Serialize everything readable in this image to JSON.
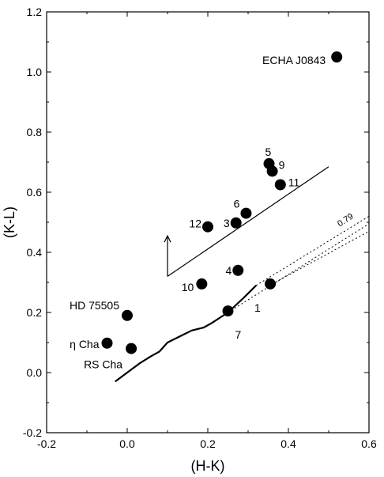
{
  "chart_data": {
    "type": "scatter",
    "title": "",
    "xlabel": "(H-K)",
    "ylabel": "(K-L)",
    "xlim": [
      -0.2,
      0.6
    ],
    "ylim": [
      -0.2,
      1.2
    ],
    "x_ticks": [
      -0.2,
      0.0,
      0.2,
      0.4,
      0.6
    ],
    "x_tick_labels": [
      "-0.2",
      "0.0",
      "0.2",
      "0.4",
      "0.6"
    ],
    "y_ticks": [
      -0.2,
      0.0,
      0.2,
      0.4,
      0.6,
      0.8,
      1.0,
      1.2
    ],
    "y_tick_labels": [
      "-0.2",
      "0.0",
      "0.2",
      "0.4",
      "0.6",
      "0.8",
      "1.0",
      "1.2"
    ],
    "grid": false,
    "legend": "none",
    "points": [
      {
        "label": "1",
        "x": 0.355,
        "y": 0.295
      },
      {
        "label": "3",
        "x": 0.27,
        "y": 0.498
      },
      {
        "label": "4",
        "x": 0.275,
        "y": 0.34
      },
      {
        "label": "5",
        "x": 0.352,
        "y": 0.695
      },
      {
        "label": "6",
        "x": 0.295,
        "y": 0.53
      },
      {
        "label": "7",
        "x": 0.25,
        "y": 0.205
      },
      {
        "label": "9",
        "x": 0.36,
        "y": 0.67
      },
      {
        "label": "10",
        "x": 0.185,
        "y": 0.295
      },
      {
        "label": "11",
        "x": 0.38,
        "y": 0.625
      },
      {
        "label": "12",
        "x": 0.2,
        "y": 0.485
      },
      {
        "label": "ECHA J0843",
        "x": 0.52,
        "y": 1.05
      },
      {
        "label": "HD 75505",
        "x": 0.0,
        "y": 0.19
      },
      {
        "label": "η Cha",
        "x": -0.05,
        "y": 0.098
      },
      {
        "label": "RS Cha",
        "x": 0.01,
        "y": 0.08
      }
    ],
    "sequence_curve": [
      {
        "x": -0.03,
        "y": -0.03
      },
      {
        "x": 0.0,
        "y": 0.0
      },
      {
        "x": 0.03,
        "y": 0.03
      },
      {
        "x": 0.06,
        "y": 0.055
      },
      {
        "x": 0.08,
        "y": 0.07
      },
      {
        "x": 0.1,
        "y": 0.1
      },
      {
        "x": 0.13,
        "y": 0.12
      },
      {
        "x": 0.16,
        "y": 0.14
      },
      {
        "x": 0.19,
        "y": 0.15
      },
      {
        "x": 0.21,
        "y": 0.165
      },
      {
        "x": 0.25,
        "y": 0.2
      },
      {
        "x": 0.29,
        "y": 0.25
      },
      {
        "x": 0.32,
        "y": 0.29
      }
    ],
    "reddening_line": [
      {
        "x": 0.1,
        "y": 0.32
      },
      {
        "x": 0.5,
        "y": 0.685
      }
    ],
    "reddening_arrow": [
      {
        "x": 0.1,
        "y": 0.32
      },
      {
        "x": 0.1,
        "y": 0.455
      }
    ],
    "dotted_lines": [
      [
        {
          "x": 0.25,
          "y": 0.2
        },
        {
          "x": 0.6,
          "y": 0.495
        }
      ],
      [
        {
          "x": 0.32,
          "y": 0.29
        },
        {
          "x": 0.6,
          "y": 0.52
        }
      ],
      [
        {
          "x": 0.36,
          "y": 0.295
        },
        {
          "x": 0.6,
          "y": 0.47
        }
      ]
    ],
    "annotation": {
      "text": "0.79",
      "x": 0.545,
      "y": 0.5,
      "rotate": -33
    }
  }
}
